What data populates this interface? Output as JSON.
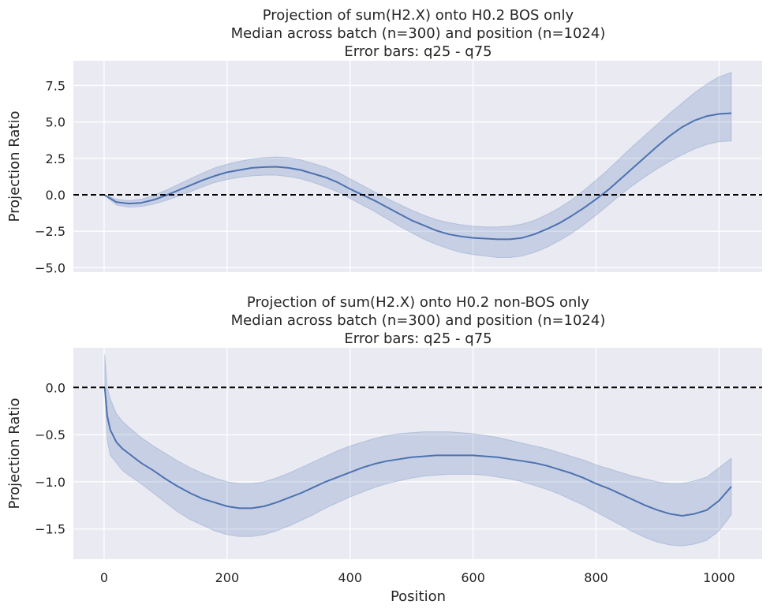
{
  "colors": {
    "background": "#ffffff",
    "axes_face": "#eaeaf2",
    "grid": "#ffffff",
    "line": "#4c72b0",
    "band": "#4c72b0",
    "reference_line": "#000000",
    "text": "#262626"
  },
  "chart_data": [
    {
      "type": "line",
      "title_lines": [
        "Projection of sum(H2.X) onto H0.2 BOS only",
        "Median across batch (n=300) and position (n=1024)",
        "Error bars: q25 - q75"
      ],
      "xlabel": "",
      "ylabel": "Projection Ratio",
      "xlim": [
        -50,
        1070
      ],
      "ylim": [
        -5.3,
        9.2
      ],
      "xticks": [
        0,
        200,
        400,
        600,
        800,
        1000
      ],
      "xtick_labels_visible": false,
      "yticks": [
        -5.0,
        -2.5,
        0.0,
        2.5,
        5.0,
        7.5
      ],
      "ytick_labels": [
        "−5.0",
        "−2.5",
        "0.0",
        "2.5",
        "5.0",
        "7.5"
      ],
      "grid": true,
      "reference_line": {
        "y": 0,
        "style": "dashed",
        "color": "#000000"
      },
      "series": [
        {
          "x": [
            0,
            20,
            40,
            60,
            80,
            100,
            120,
            140,
            160,
            180,
            200,
            220,
            240,
            260,
            280,
            300,
            320,
            340,
            360,
            380,
            400,
            420,
            440,
            460,
            480,
            500,
            520,
            540,
            560,
            580,
            600,
            620,
            640,
            660,
            680,
            700,
            720,
            740,
            760,
            780,
            800,
            820,
            840,
            860,
            880,
            900,
            920,
            940,
            960,
            980,
            1000,
            1020
          ],
          "median": [
            0.0,
            -0.5,
            -0.6,
            -0.55,
            -0.35,
            -0.05,
            0.3,
            0.65,
            1.0,
            1.3,
            1.55,
            1.7,
            1.85,
            1.9,
            1.92,
            1.85,
            1.7,
            1.45,
            1.2,
            0.85,
            0.4,
            0.0,
            -0.4,
            -0.85,
            -1.3,
            -1.75,
            -2.1,
            -2.45,
            -2.7,
            -2.85,
            -2.95,
            -3.0,
            -3.05,
            -3.05,
            -2.95,
            -2.7,
            -2.35,
            -1.95,
            -1.45,
            -0.9,
            -0.3,
            0.35,
            1.1,
            1.85,
            2.6,
            3.35,
            4.05,
            4.65,
            5.1,
            5.4,
            5.55,
            5.6
          ],
          "q25": [
            0.0,
            -0.7,
            -0.85,
            -0.8,
            -0.65,
            -0.4,
            -0.1,
            0.2,
            0.55,
            0.85,
            1.05,
            1.2,
            1.3,
            1.35,
            1.35,
            1.25,
            1.1,
            0.85,
            0.55,
            0.2,
            -0.25,
            -0.7,
            -1.15,
            -1.65,
            -2.15,
            -2.6,
            -3.05,
            -3.4,
            -3.7,
            -3.95,
            -4.1,
            -4.2,
            -4.3,
            -4.3,
            -4.2,
            -3.95,
            -3.6,
            -3.15,
            -2.65,
            -2.05,
            -1.4,
            -0.7,
            0.0,
            0.65,
            1.25,
            1.8,
            2.3,
            2.75,
            3.15,
            3.45,
            3.65,
            3.7
          ],
          "q75": [
            0.0,
            -0.3,
            -0.4,
            -0.3,
            -0.05,
            0.3,
            0.7,
            1.1,
            1.5,
            1.85,
            2.1,
            2.3,
            2.45,
            2.55,
            2.6,
            2.55,
            2.4,
            2.15,
            1.9,
            1.55,
            1.1,
            0.65,
            0.2,
            -0.25,
            -0.65,
            -1.05,
            -1.4,
            -1.7,
            -1.9,
            -2.05,
            -2.15,
            -2.2,
            -2.2,
            -2.15,
            -2.0,
            -1.75,
            -1.35,
            -0.9,
            -0.35,
            0.3,
            1.0,
            1.75,
            2.55,
            3.35,
            4.1,
            4.85,
            5.6,
            6.3,
            7.0,
            7.6,
            8.1,
            8.4
          ]
        }
      ]
    },
    {
      "type": "line",
      "title_lines": [
        "Projection of sum(H2.X) onto H0.2 non-BOS only",
        "Median across batch (n=300) and position (n=1024)",
        "Error bars: q25 - q75"
      ],
      "xlabel": "Position",
      "ylabel": "Projection Ratio",
      "xlim": [
        -50,
        1070
      ],
      "ylim": [
        -1.82,
        0.42
      ],
      "xticks": [
        0,
        200,
        400,
        600,
        800,
        1000
      ],
      "xtick_labels": [
        "0",
        "200",
        "400",
        "600",
        "800",
        "1000"
      ],
      "xtick_labels_visible": true,
      "yticks": [
        -1.5,
        -1.0,
        -0.5,
        0.0
      ],
      "ytick_labels": [
        "−1.5",
        "−1.0",
        "−0.5",
        "0.0"
      ],
      "grid": true,
      "reference_line": {
        "y": 0,
        "style": "dashed",
        "color": "#000000"
      },
      "series": [
        {
          "x": [
            1,
            5,
            10,
            20,
            30,
            40,
            60,
            80,
            100,
            120,
            140,
            160,
            180,
            200,
            220,
            240,
            260,
            280,
            300,
            320,
            340,
            360,
            380,
            400,
            420,
            440,
            460,
            480,
            500,
            520,
            540,
            560,
            580,
            600,
            620,
            640,
            660,
            680,
            700,
            720,
            740,
            760,
            780,
            800,
            820,
            840,
            860,
            880,
            900,
            920,
            940,
            960,
            980,
            1000,
            1020
          ],
          "median": [
            0.0,
            -0.3,
            -0.45,
            -0.58,
            -0.65,
            -0.7,
            -0.8,
            -0.88,
            -0.97,
            -1.05,
            -1.12,
            -1.18,
            -1.22,
            -1.26,
            -1.28,
            -1.28,
            -1.26,
            -1.22,
            -1.17,
            -1.12,
            -1.06,
            -1.0,
            -0.95,
            -0.9,
            -0.85,
            -0.81,
            -0.78,
            -0.76,
            -0.74,
            -0.73,
            -0.72,
            -0.72,
            -0.72,
            -0.72,
            -0.73,
            -0.74,
            -0.76,
            -0.78,
            -0.8,
            -0.83,
            -0.87,
            -0.91,
            -0.96,
            -1.02,
            -1.07,
            -1.13,
            -1.19,
            -1.25,
            -1.3,
            -1.34,
            -1.36,
            -1.34,
            -1.3,
            -1.2,
            -1.05
          ],
          "q25": [
            0.0,
            -0.55,
            -0.72,
            -0.8,
            -0.88,
            -0.93,
            -1.02,
            -1.12,
            -1.22,
            -1.32,
            -1.4,
            -1.46,
            -1.52,
            -1.56,
            -1.58,
            -1.58,
            -1.56,
            -1.52,
            -1.47,
            -1.41,
            -1.35,
            -1.28,
            -1.22,
            -1.16,
            -1.11,
            -1.06,
            -1.02,
            -0.99,
            -0.96,
            -0.94,
            -0.93,
            -0.92,
            -0.92,
            -0.92,
            -0.93,
            -0.95,
            -0.97,
            -1.0,
            -1.04,
            -1.08,
            -1.13,
            -1.19,
            -1.25,
            -1.32,
            -1.39,
            -1.46,
            -1.53,
            -1.59,
            -1.64,
            -1.67,
            -1.68,
            -1.66,
            -1.62,
            -1.52,
            -1.35
          ],
          "q75": [
            0.35,
            0.0,
            -0.12,
            -0.28,
            -0.36,
            -0.42,
            -0.53,
            -0.62,
            -0.7,
            -0.78,
            -0.85,
            -0.91,
            -0.96,
            -1.0,
            -1.02,
            -1.02,
            -1.0,
            -0.96,
            -0.91,
            -0.85,
            -0.79,
            -0.73,
            -0.67,
            -0.62,
            -0.58,
            -0.54,
            -0.51,
            -0.49,
            -0.48,
            -0.47,
            -0.47,
            -0.47,
            -0.48,
            -0.49,
            -0.51,
            -0.53,
            -0.56,
            -0.59,
            -0.62,
            -0.65,
            -0.69,
            -0.73,
            -0.77,
            -0.82,
            -0.86,
            -0.9,
            -0.94,
            -0.97,
            -1.0,
            -1.02,
            -1.02,
            -0.99,
            -0.95,
            -0.85,
            -0.75
          ]
        }
      ]
    }
  ]
}
